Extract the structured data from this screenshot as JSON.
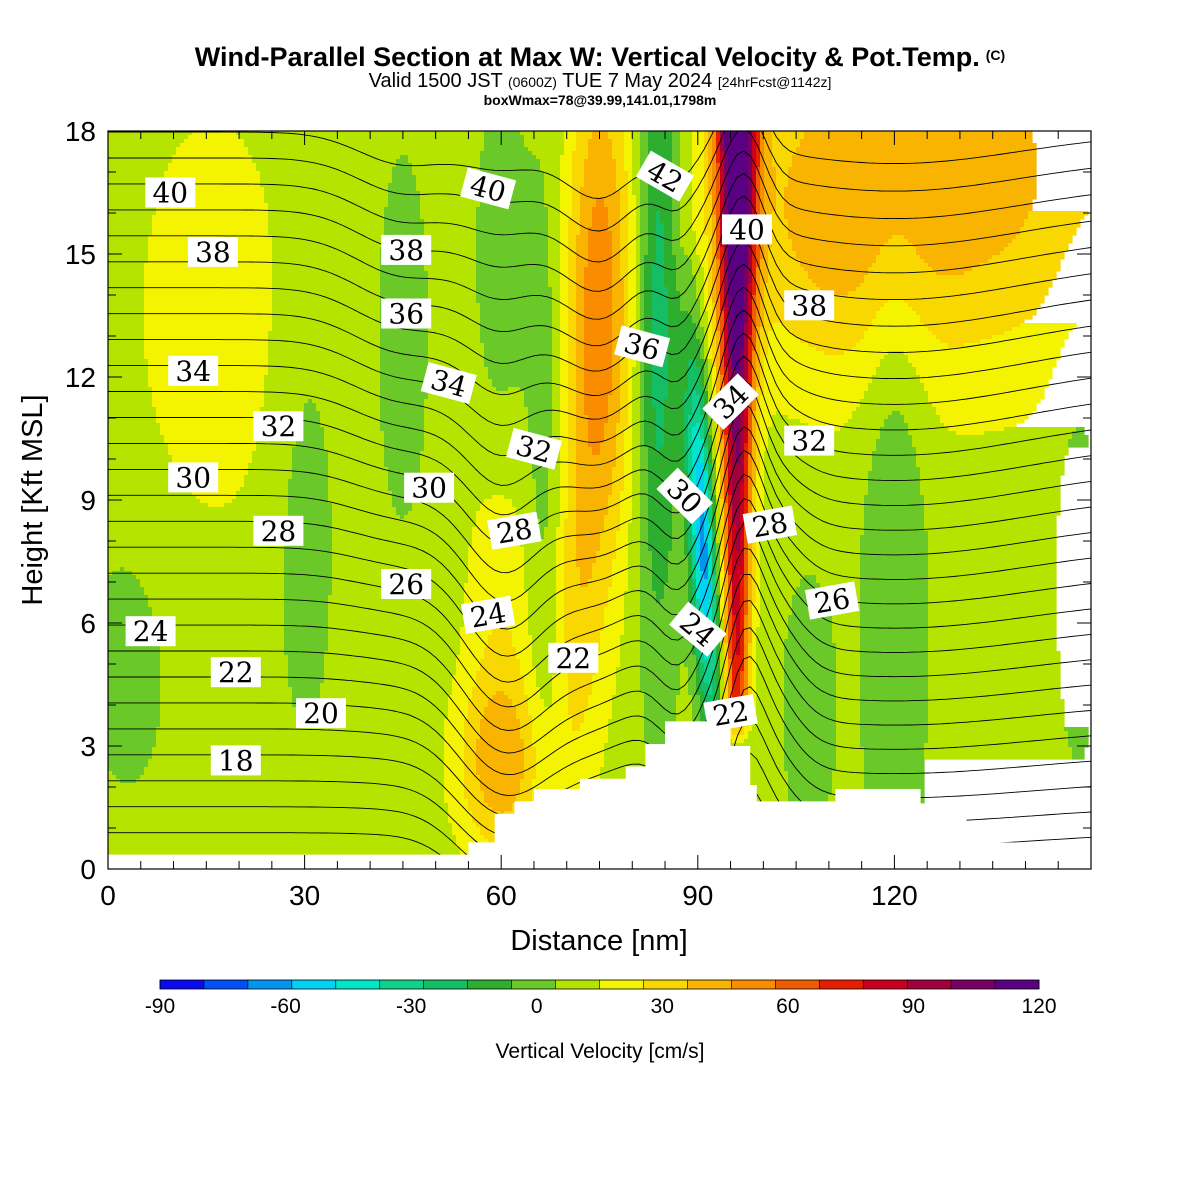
{
  "titles": {
    "main": "Wind-Parallel Section at Max W: Vertical Velocity & Pot.Temp.",
    "copyright": "(C)",
    "valid_a": "Valid 1500 JST",
    "valid_utc": "(0600Z)",
    "valid_b": "TUE 7 May 2024",
    "forecast": "[24hrFcst@1142z]",
    "box": "boxWmax=78@39.99,141.01,1798m"
  },
  "chart_data": {
    "type": "heatmap",
    "xlabel": "Distance [nm]",
    "ylabel": "Height [Kft MSL]",
    "xlim": [
      0,
      150
    ],
    "ylim": [
      0,
      18
    ],
    "xticks": [
      0,
      30,
      60,
      90,
      120
    ],
    "yticks": [
      0,
      3,
      6,
      9,
      12,
      15,
      18
    ],
    "colorbar": {
      "label": "Vertical Velocity [cm/s]",
      "min": -90,
      "max": 120,
      "step": 10,
      "ticks": [
        -90,
        -60,
        -30,
        0,
        30,
        60,
        90,
        120
      ],
      "colors": [
        "#0a0aee",
        "#0050f5",
        "#0096f0",
        "#00d2f5",
        "#00e6c8",
        "#10d08c",
        "#14be64",
        "#2eae2e",
        "#6ac828",
        "#b4e400",
        "#f4f400",
        "#f8d800",
        "#f8b400",
        "#fa8c00",
        "#f05a00",
        "#e61e00",
        "#c8001e",
        "#a0003c",
        "#780064",
        "#5a0082"
      ]
    },
    "w_field": {
      "background": 4,
      "features": [
        {
          "x": 128,
          "z": 17,
          "sx": 22,
          "sz": 3.5,
          "amp": 32
        },
        {
          "x": 110,
          "z": 15.5,
          "sx": 10,
          "sz": 2.5,
          "amp": 12
        },
        {
          "x": 16,
          "z": 13.5,
          "sx": 9,
          "sz": 4,
          "amp": 12
        },
        {
          "x": 60,
          "z": 6,
          "sx": 4,
          "sz": 3.5,
          "amp": 16
        },
        {
          "x": 60,
          "z": 2.5,
          "sx": 5,
          "sz": 1.5,
          "amp": 26
        },
        {
          "x": 75,
          "z": 13.5,
          "sx": 3.6,
          "sz": 4.5,
          "amp": 42
        },
        {
          "x": 71,
          "z": 6,
          "sx": 3,
          "sz": 3.5,
          "amp": 18
        },
        {
          "x": 84,
          "z": 14,
          "sx": 2.4,
          "sz": 6,
          "amp": -32
        },
        {
          "x": 67,
          "z": 9,
          "sx": 2.2,
          "sz": 6,
          "amp": -14
        },
        {
          "x": 60,
          "z": 14,
          "sx": 3,
          "sz": 4,
          "amp": -10
        },
        {
          "x": 45,
          "z": 13,
          "sx": 3,
          "sz": 3.5,
          "amp": -9
        },
        {
          "x": 30,
          "z": 8.5,
          "sx": 3.5,
          "sz": 4,
          "amp": -9
        },
        {
          "x": 3,
          "z": 5,
          "sx": 5,
          "sz": 2.5,
          "amp": -8
        },
        {
          "x": 120,
          "z": 8.5,
          "sx": 3.5,
          "sz": 7,
          "amp": -14
        },
        {
          "x": 107,
          "z": 4,
          "sx": 3,
          "sz": 2.5,
          "amp": -10
        },
        {
          "x": 148,
          "z": 9,
          "sx": 3,
          "sz": 5,
          "amp": -9
        }
      ],
      "updraft_core": {
        "x_bottom": 96,
        "x_top": 96,
        "sigma_bottom": 1.3,
        "sigma_top": 2.2,
        "amp_bottom": 60,
        "amp_top": 115,
        "zmin": 3.5,
        "zmax": 18
      },
      "downdraft_core": {
        "x_bottom": 92,
        "x_top": 89,
        "sigma": 1.4,
        "amp": -68,
        "zmin": 4,
        "zmax": 14,
        "zpeak": 8
      }
    },
    "terrain_steps": [
      {
        "x1": 0,
        "x2": 52,
        "z": 0.35
      },
      {
        "x1": 52,
        "x2": 55,
        "z": 0.35
      },
      {
        "x1": 55,
        "x2": 59,
        "z": 0.65
      },
      {
        "x1": 59,
        "x2": 62,
        "z": 1.35
      },
      {
        "x1": 62,
        "x2": 65,
        "z": 1.65
      },
      {
        "x1": 65,
        "x2": 72,
        "z": 1.95
      },
      {
        "x1": 72,
        "x2": 79,
        "z": 2.2
      },
      {
        "x1": 79,
        "x2": 82,
        "z": 2.5
      },
      {
        "x1": 82,
        "x2": 85,
        "z": 3.05
      },
      {
        "x1": 85,
        "x2": 95,
        "z": 3.6
      },
      {
        "x1": 95,
        "x2": 98,
        "z": 3.0
      },
      {
        "x1": 98,
        "x2": 99,
        "z": 2.05
      },
      {
        "x1": 99,
        "x2": 111,
        "z": 1.65
      },
      {
        "x1": 111,
        "x2": 124,
        "z": 1.95
      },
      {
        "x1": 124,
        "x2": 127,
        "z": 1.6
      },
      {
        "x1": 127,
        "x2": 131,
        "z": 1.35
      },
      {
        "x1": 131,
        "x2": 134,
        "z": 1.0
      },
      {
        "x1": 134,
        "x2": 140,
        "z": 0.65
      },
      {
        "x1": 140,
        "x2": 150,
        "z": 0.35
      }
    ],
    "theta_contours": {
      "min": 14,
      "max": 43,
      "interval": 1,
      "base_theta": 14.6,
      "lapse_per_kft": 1.58,
      "waves": [
        {
          "x": 60,
          "z": 7,
          "sx": 6,
          "sz": 7,
          "amp": 3.5
        },
        {
          "x": 75,
          "z": 13,
          "sx": 6,
          "sz": 5,
          "amp": 3
        },
        {
          "x": 45,
          "z": 14,
          "sx": 7,
          "sz": 5,
          "amp": 1.5
        },
        {
          "x": 70,
          "z": 3,
          "sx": 10,
          "sz": 3,
          "amp": 1.5
        },
        {
          "x": 87,
          "z": 8,
          "sx": 3,
          "sz": 9,
          "amp": 2
        },
        {
          "x": 97,
          "z": 11,
          "sx": 2.8,
          "sz": 8,
          "amp": -4
        },
        {
          "x": 101,
          "z": 5,
          "sx": 4,
          "sz": 4,
          "amp": -2
        },
        {
          "x": 120,
          "z": 12,
          "sx": 20,
          "sz": 8,
          "amp": 1.5
        }
      ]
    },
    "contour_labels": [
      {
        "text": "40",
        "x": 9.5,
        "z": 16.5,
        "rot": 0
      },
      {
        "text": "38",
        "x": 16,
        "z": 15.05,
        "rot": 0
      },
      {
        "text": "34",
        "x": 13,
        "z": 12.15,
        "rot": 0
      },
      {
        "text": "32",
        "x": 26,
        "z": 10.8,
        "rot": 0
      },
      {
        "text": "30",
        "x": 13,
        "z": 9.55,
        "rot": 0
      },
      {
        "text": "28",
        "x": 26,
        "z": 8.25,
        "rot": 0
      },
      {
        "text": "24",
        "x": 6.5,
        "z": 5.8,
        "rot": 0
      },
      {
        "text": "22",
        "x": 19.5,
        "z": 4.8,
        "rot": 0
      },
      {
        "text": "20",
        "x": 32.5,
        "z": 3.8,
        "rot": 0
      },
      {
        "text": "18",
        "x": 19.5,
        "z": 2.65,
        "rot": 0
      },
      {
        "text": "40",
        "x": 58,
        "z": 16.6,
        "rot": 15
      },
      {
        "text": "38",
        "x": 45.5,
        "z": 15.1,
        "rot": 0
      },
      {
        "text": "36",
        "x": 45.5,
        "z": 13.55,
        "rot": 0
      },
      {
        "text": "34",
        "x": 52,
        "z": 11.85,
        "rot": 15
      },
      {
        "text": "32",
        "x": 65,
        "z": 10.25,
        "rot": 15
      },
      {
        "text": "30",
        "x": 49,
        "z": 9.3,
        "rot": 0
      },
      {
        "text": "28",
        "x": 62,
        "z": 8.25,
        "rot": -10
      },
      {
        "text": "26",
        "x": 45.5,
        "z": 6.95,
        "rot": 0
      },
      {
        "text": "24",
        "x": 58,
        "z": 6.2,
        "rot": -10
      },
      {
        "text": "22",
        "x": 71,
        "z": 5.15,
        "rot": 0
      },
      {
        "text": "42",
        "x": 85,
        "z": 16.9,
        "rot": 30
      },
      {
        "text": "36",
        "x": 81.5,
        "z": 12.75,
        "rot": 15
      },
      {
        "text": "34",
        "x": 95,
        "z": 11.4,
        "rot": -45
      },
      {
        "text": "30",
        "x": 88,
        "z": 9.1,
        "rot": 45
      },
      {
        "text": "24",
        "x": 90,
        "z": 5.85,
        "rot": 40
      },
      {
        "text": "40",
        "x": 97.5,
        "z": 15.6,
        "rot": 0
      },
      {
        "text": "22",
        "x": 95,
        "z": 3.8,
        "rot": -10
      },
      {
        "text": "38",
        "x": 107,
        "z": 13.75,
        "rot": 0
      },
      {
        "text": "32",
        "x": 107,
        "z": 10.45,
        "rot": 0
      },
      {
        "text": "28",
        "x": 101,
        "z": 8.4,
        "rot": -10
      },
      {
        "text": "26",
        "x": 110.5,
        "z": 6.55,
        "rot": -10
      }
    ]
  }
}
